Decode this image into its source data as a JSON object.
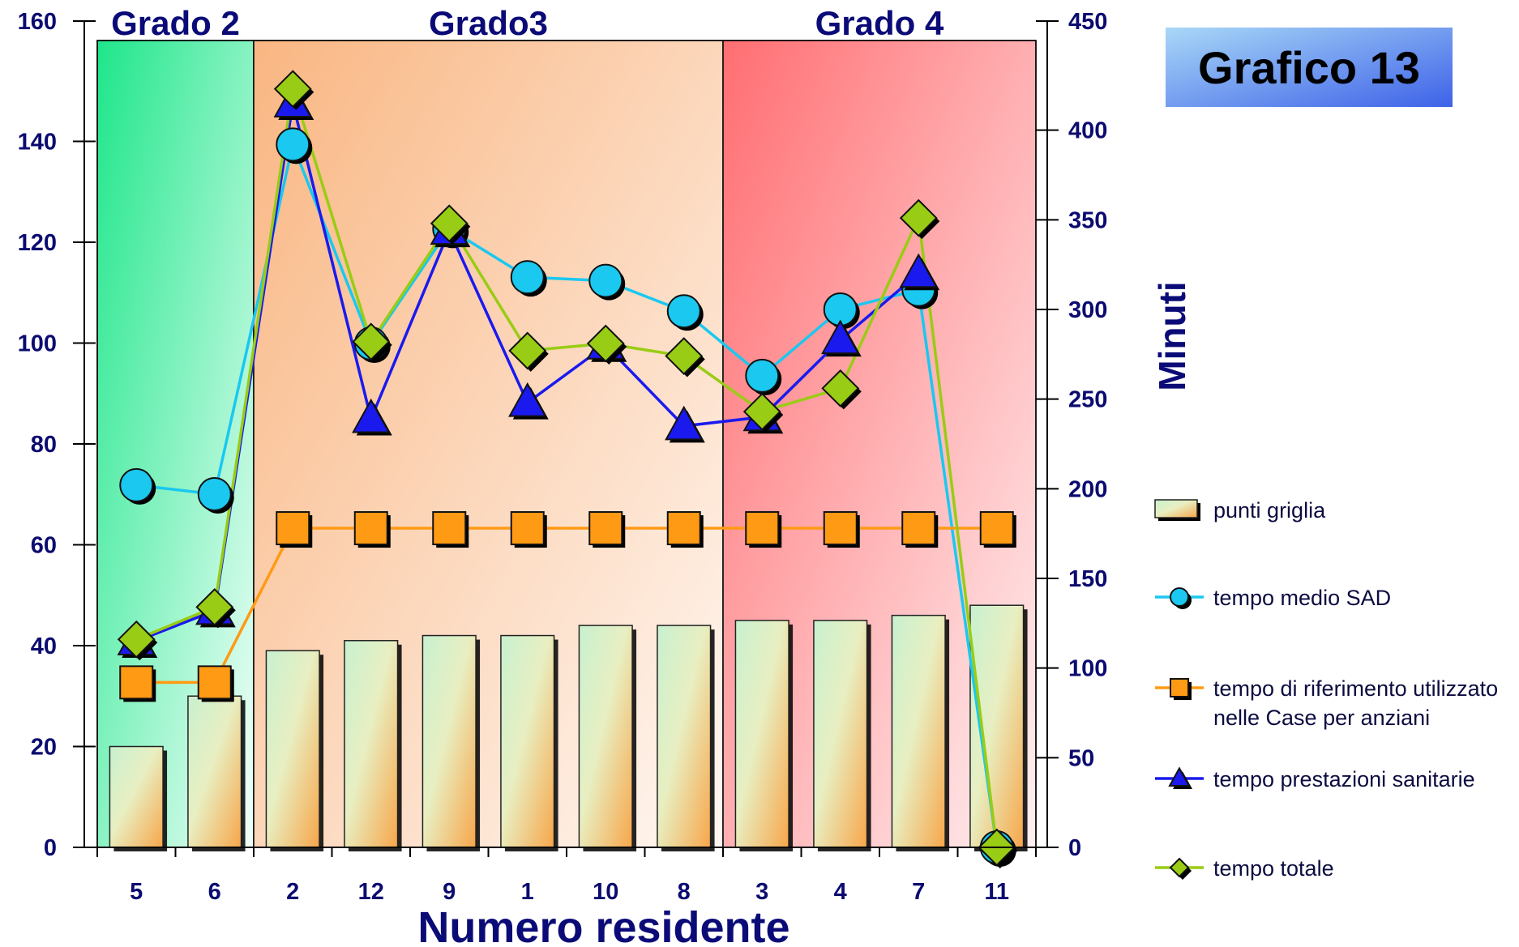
{
  "chart_data": {
    "type": "bar",
    "badge": "Grafico 13",
    "xlabel": "Numero residente",
    "ylabel": "",
    "y2label": "Minuti",
    "ylim": [
      0,
      160
    ],
    "y2lim": [
      0,
      450
    ],
    "yticks": [
      0,
      20,
      40,
      60,
      80,
      100,
      120,
      140,
      160
    ],
    "y2ticks": [
      0,
      50,
      100,
      150,
      200,
      250,
      300,
      350,
      400,
      450
    ],
    "categories": [
      "5",
      "6",
      "2",
      "12",
      "9",
      "1",
      "10",
      "8",
      "3",
      "4",
      "7",
      "11"
    ],
    "bands": [
      {
        "label": "Grado 2",
        "start": 0,
        "end": 1,
        "from": "#1ee68a",
        "to": "#f2fffa"
      },
      {
        "label": "Grado3",
        "start": 2,
        "end": 7,
        "from": "#f9b682",
        "to": "#fff7f2"
      },
      {
        "label": "Grado 4",
        "start": 8,
        "end": 11,
        "from": "#ff6e72",
        "to": "#fff0f1"
      }
    ],
    "legend_position": "right",
    "series": [
      {
        "name": "punti griglia",
        "kind": "bar",
        "axis": "left",
        "color": "#f7a64a",
        "values": [
          20,
          30,
          39,
          41,
          42,
          42,
          44,
          44,
          45,
          45,
          46,
          48
        ]
      },
      {
        "name": "tempo medio SAD",
        "kind": "line",
        "marker": "circle",
        "axis": "right",
        "color": "#1ac8f0",
        "values": [
          202,
          197,
          392,
          281,
          345,
          318,
          316,
          299,
          263,
          300,
          311,
          0
        ]
      },
      {
        "name": "tempo di riferimento utilizzato nelle Case per anziani",
        "kind": "line",
        "marker": "square",
        "axis": "right",
        "color": "#ff9a14",
        "values": [
          92,
          92,
          178,
          178,
          178,
          178,
          178,
          178,
          178,
          178,
          178,
          178
        ]
      },
      {
        "name": "tempo prestazioni sanitarie",
        "kind": "line",
        "marker": "triangle",
        "axis": "right",
        "color": "#1a1aee",
        "values": [
          115,
          132,
          415,
          239,
          344,
          248,
          280,
          235,
          240,
          283,
          320,
          null
        ]
      },
      {
        "name": "tempo totale",
        "kind": "line",
        "marker": "diamond",
        "axis": "right",
        "color": "#99cc14",
        "values": [
          116,
          134,
          423,
          282,
          348,
          277,
          281,
          274,
          243,
          256,
          351,
          0
        ]
      }
    ]
  }
}
